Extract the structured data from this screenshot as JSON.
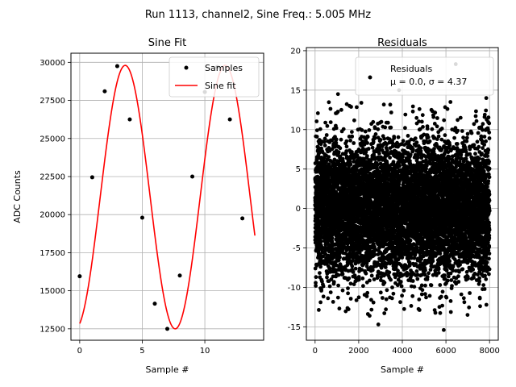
{
  "figure": {
    "suptitle": "Run 1113, channel2, Sine Freq.: 5.005 MHz",
    "point_color": "#000000",
    "fit_color": "#ff0000",
    "grid": true
  },
  "chart_data": [
    {
      "type": "line",
      "title": "Sine Fit",
      "xlabel": "Sample #",
      "ylabel": "ADC Counts",
      "xlim": [
        -0.7,
        14.7
      ],
      "ylim": [
        11750,
        30600
      ],
      "xticks": [
        0,
        5,
        10
      ],
      "yticks": [
        12500,
        15000,
        17500,
        20000,
        22500,
        25000,
        27500,
        30000
      ],
      "grid": true,
      "legend": {
        "placement": "top-right",
        "entries": [
          "Samples",
          "Sine fit"
        ]
      },
      "series": [
        {
          "name": "Samples",
          "kind": "points",
          "color": "#000000",
          "x": [
            0,
            1,
            2,
            3,
            4,
            5,
            6,
            7,
            8,
            9,
            10,
            11,
            12,
            13
          ],
          "y": [
            15950,
            22450,
            28100,
            29750,
            26250,
            19800,
            14150,
            12500,
            16000,
            22500,
            28050,
            29700,
            26250,
            19750
          ]
        },
        {
          "name": "Sine fit",
          "kind": "line",
          "color": "#ff0000",
          "model": {
            "offset": 21150,
            "amplitude": 8650,
            "period_samples": 7.99,
            "phase": -0.045
          },
          "x_range": [
            0,
            14
          ]
        }
      ]
    },
    {
      "type": "scatter",
      "title": "Residuals",
      "xlabel": "Sample #",
      "ylabel": "",
      "xlim": [
        -400,
        8400
      ],
      "ylim": [
        -16.7,
        20.4
      ],
      "xticks": [
        0,
        2000,
        4000,
        6000,
        8000
      ],
      "yticks": [
        -15,
        -10,
        -5,
        0,
        5,
        10,
        15,
        20
      ],
      "grid": true,
      "legend": {
        "placement": "top-right",
        "entries": [
          "Residuals"
        ],
        "annotation": "μ = 0.0, σ = 4.37"
      },
      "series": [
        {
          "name": "Residuals",
          "color": "#000000",
          "n_points": 8000,
          "x_range": [
            0,
            7999
          ],
          "mean": 0.0,
          "std": 4.37,
          "notable_points": [
            {
              "x": 6450,
              "y": 18.3
            },
            {
              "x": 3850,
              "y": 15.0
            },
            {
              "x": 5900,
              "y": -15.4
            },
            {
              "x": 2900,
              "y": -14.7
            },
            {
              "x": 2500,
              "y": -13.6
            },
            {
              "x": 1050,
              "y": 14.5
            },
            {
              "x": 7850,
              "y": 14.0
            }
          ]
        }
      ]
    }
  ]
}
